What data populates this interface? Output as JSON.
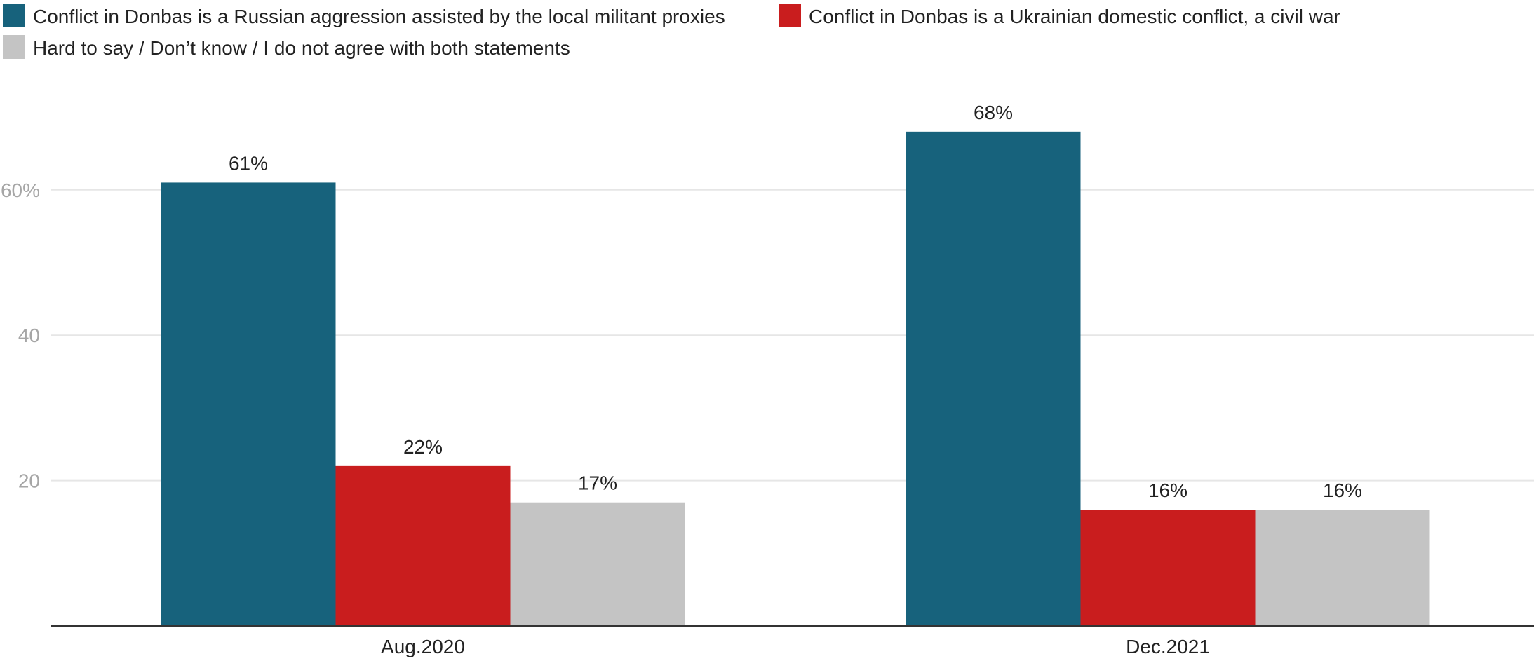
{
  "chart_data": {
    "type": "bar",
    "categories": [
      "Aug.2020",
      "Dec.2021"
    ],
    "series": [
      {
        "name": "Conflict in Donbas is a Russian aggression assisted by the local militant proxies",
        "values": [
          61,
          68
        ],
        "labels": [
          "61%",
          "68%"
        ],
        "color": "#17627c"
      },
      {
        "name": "Conflict in Donbas is a Ukrainian domestic conflict, a civil war",
        "values": [
          22,
          16
        ],
        "labels": [
          "22%",
          "16%"
        ],
        "color": "#c91d1e"
      },
      {
        "name": "Hard to say / Don’t know / I do not agree with both statements",
        "values": [
          17,
          16
        ],
        "labels": [
          "17%",
          "16%"
        ],
        "color": "#c4c4c4"
      }
    ],
    "yticks": [
      {
        "value": 20,
        "label": "20"
      },
      {
        "value": 40,
        "label": "40"
      },
      {
        "value": 60,
        "label": "60%"
      }
    ],
    "ylim": [
      0,
      75
    ],
    "grid": true,
    "legend_position": "top-left",
    "gridline_color": "#e6e6e6",
    "axis_color": "#333333"
  }
}
